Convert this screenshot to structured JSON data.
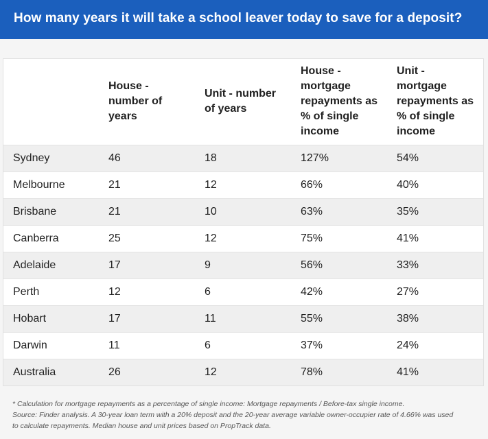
{
  "title": "How many years it will take a school leaver today to save for a deposit?",
  "chart_data": {
    "type": "table",
    "title": "How many years it will take a school leaver today to save for a deposit?",
    "columns": [
      "",
      "House - number of years",
      "Unit - number of years",
      "House - mortgage repayments as % of single income",
      "Unit - mortgage repayments as % of single income"
    ],
    "rows": [
      [
        "Sydney",
        "46",
        "18",
        "127%",
        "54%"
      ],
      [
        "Melbourne",
        "21",
        "12",
        "66%",
        "40%"
      ],
      [
        "Brisbane",
        "21",
        "10",
        "63%",
        "35%"
      ],
      [
        "Canberra",
        "25",
        "12",
        "75%",
        "41%"
      ],
      [
        "Adelaide",
        "17",
        "9",
        "56%",
        "33%"
      ],
      [
        "Perth",
        "12",
        "6",
        "42%",
        "27%"
      ],
      [
        "Hobart",
        "17",
        "11",
        "55%",
        "38%"
      ],
      [
        "Darwin",
        "11",
        "6",
        "37%",
        "24%"
      ],
      [
        "Australia",
        "26",
        "12",
        "78%",
        "41%"
      ]
    ]
  },
  "footnotes": [
    "* Calculation for mortgage repayments as a percentage of single income: Mortgage repayments / Before-tax single income.",
    "Source: Finder analysis. A 30-year loan term with a 20% deposit and the 20-year average variable owner-occupier rate of 4.66% was used",
    "to calculate repayments. Median house and unit prices based on PropTrack data."
  ],
  "colors": {
    "title_bg": "#1b5fbd",
    "title_text": "#ffffff",
    "row_shade": "#efefef"
  }
}
